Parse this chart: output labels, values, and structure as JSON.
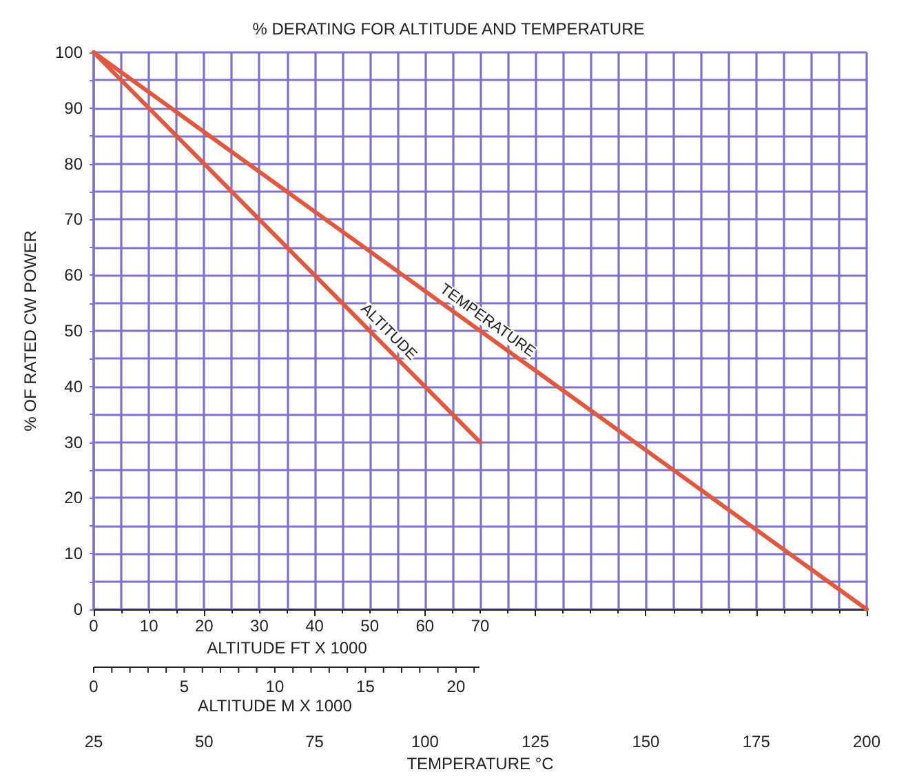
{
  "chart_data": {
    "type": "line",
    "title": "% DERATING FOR ALTITUDE AND TEMPERATURE",
    "ylabel": "% OF RATED CW POWER",
    "xlabel": "TEMPERATURE °C",
    "x2label": "ALTITUDE FT X 1000",
    "xlim": [
      25,
      200
    ],
    "xticks": [
      25,
      50,
      75,
      100,
      125,
      150,
      175,
      200
    ],
    "x2lim": [
      0,
      140
    ],
    "x2ticks": [
      0,
      {
        "value": 5,
        "label": null
      },
      10,
      {
        "value": 15,
        "label": null
      },
      20,
      {
        "value": 25,
        "label": null
      },
      30,
      {
        "value": 35,
        "label": null
      },
      40,
      {
        "value": 45,
        "label": null
      },
      50,
      {
        "value": 55,
        "label": null
      },
      60,
      {
        "value": 65,
        "label": null
      },
      70,
      {
        "value": 75,
        "label": null
      },
      {
        "value": 80,
        "label": null
      },
      {
        "value": 85,
        "label": null
      },
      {
        "value": 90,
        "label": null
      },
      {
        "value": 95,
        "label": null
      },
      {
        "value": 100,
        "label": null
      },
      {
        "value": 105,
        "label": null
      },
      {
        "value": 110,
        "label": null
      },
      {
        "value": 115,
        "label": null
      },
      {
        "value": 120,
        "label": null
      },
      {
        "value": 125,
        "label": null
      },
      {
        "value": 130,
        "label": null
      },
      {
        "value": 135,
        "label": null
      },
      {
        "value": 140,
        "label": null
      }
    ],
    "ylim": [
      0,
      100
    ],
    "yticks": [
      0,
      {
        "value": 5,
        "label": null
      },
      10,
      {
        "value": 15,
        "label": null
      },
      20,
      {
        "value": 25,
        "label": null
      },
      30,
      {
        "value": 35,
        "label": null
      },
      40,
      {
        "value": 45,
        "label": null
      },
      50,
      {
        "value": 55,
        "label": null
      },
      60,
      {
        "value": 65,
        "label": null
      },
      70,
      {
        "value": 75,
        "label": null
      },
      80,
      {
        "value": 85,
        "label": null
      },
      90,
      {
        "value": 95,
        "label": null
      },
      100
    ],
    "annotations": [
      "0",
      "5",
      "10",
      "15",
      "20",
      "ALTITUDE M X 1000"
    ],
    "grid": true,
    "marker": "none",
    "line_style": "solid",
    "series": [
      {
        "name": "ALTITUDE",
        "color": "#e2583e",
        "axis": "x2",
        "x": [
          0,
          70
        ],
        "values": [
          100,
          30
        ]
      },
      {
        "name": "TEMPERATURE",
        "color": "#e2583e",
        "x": [
          25,
          200
        ],
        "values": [
          100,
          0
        ]
      }
    ]
  }
}
